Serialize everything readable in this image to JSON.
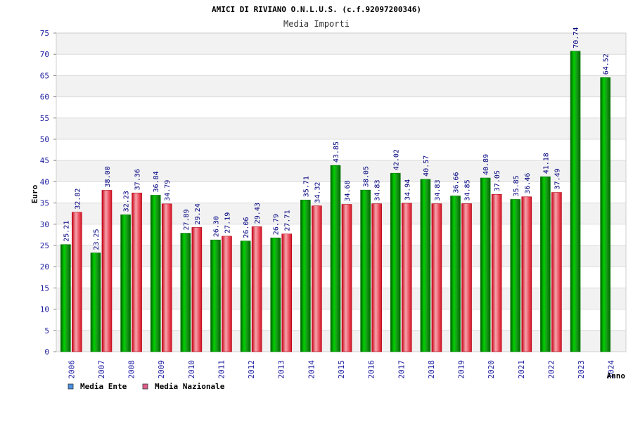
{
  "chart_data": {
    "type": "bar",
    "title": "AMICI DI RIVIANO O.N.L.U.S. (c.f.92097200346)",
    "subtitle": "Media Importi",
    "xlabel": "Anno",
    "ylabel": "Euro",
    "ylim": [
      0,
      75
    ],
    "yticks": [
      0,
      5,
      10,
      15,
      20,
      25,
      30,
      35,
      40,
      45,
      50,
      55,
      60,
      65,
      70,
      75
    ],
    "grid": true,
    "legend_position": "bottom-left",
    "categories": [
      "2006",
      "2007",
      "2008",
      "2009",
      "2010",
      "2011",
      "2012",
      "2013",
      "2014",
      "2015",
      "2016",
      "2017",
      "2018",
      "2019",
      "2020",
      "2021",
      "2022",
      "2023",
      "2024"
    ],
    "series": [
      {
        "name": "Media Ente",
        "legend_color": "#4a90e2",
        "bar_color": "#00b000",
        "values": [
          25.21,
          23.25,
          32.23,
          36.84,
          27.89,
          26.3,
          26.06,
          26.79,
          35.71,
          43.85,
          38.05,
          42.02,
          40.57,
          36.66,
          40.89,
          35.85,
          41.18,
          70.74,
          64.52
        ],
        "labels": [
          "25.21",
          "23.25",
          "32.23",
          "36.84",
          "27.89",
          "26.30",
          "26.06",
          "26.79",
          "35.71",
          "43.85",
          "38.05",
          "42.02",
          "40.57",
          "36.66",
          "40.89",
          "35.85",
          "41.18",
          "70.74",
          "64.52"
        ]
      },
      {
        "name": "Media Nazionale",
        "legend_color": "#e0608a",
        "bar_color": "#e8202e",
        "values": [
          32.82,
          38.0,
          37.36,
          34.79,
          29.24,
          27.19,
          29.43,
          27.71,
          34.32,
          34.68,
          34.83,
          34.94,
          34.83,
          34.85,
          37.05,
          36.46,
          37.49,
          null,
          null
        ],
        "labels": [
          "32.82",
          "38.00",
          "37.36",
          "34.79",
          "29.24",
          "27.19",
          "29.43",
          "27.71",
          "34.32",
          "34.68",
          "34.83",
          "34.94",
          "34.83",
          "34.85",
          "37.05",
          "36.46",
          "37.49",
          null,
          null
        ]
      }
    ],
    "colors": {
      "tick_text": "#1a1aa0",
      "axis_title_text": "#000000",
      "grid_band": "#f2f2f2",
      "grid_line": "#dcdcdc"
    }
  }
}
